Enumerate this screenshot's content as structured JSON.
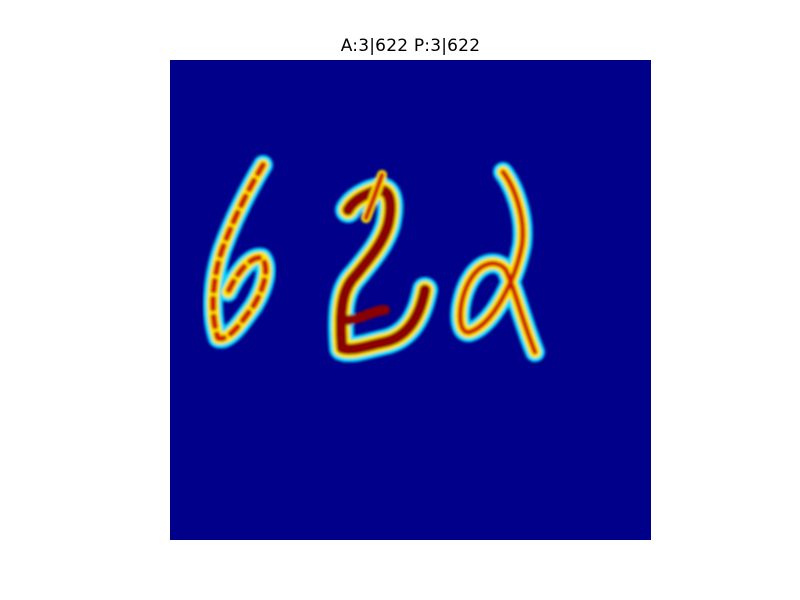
{
  "figure": {
    "title": "A:3|622 P:3|622"
  },
  "colors": {
    "background": "#00008b",
    "glow": "#00d8ff",
    "mid": "#ffe600",
    "hot": "#cc1b00",
    "core": "#8b0000"
  },
  "glyphs": [
    "6-glyph",
    "2-glyph",
    "2-glyph-second"
  ]
}
